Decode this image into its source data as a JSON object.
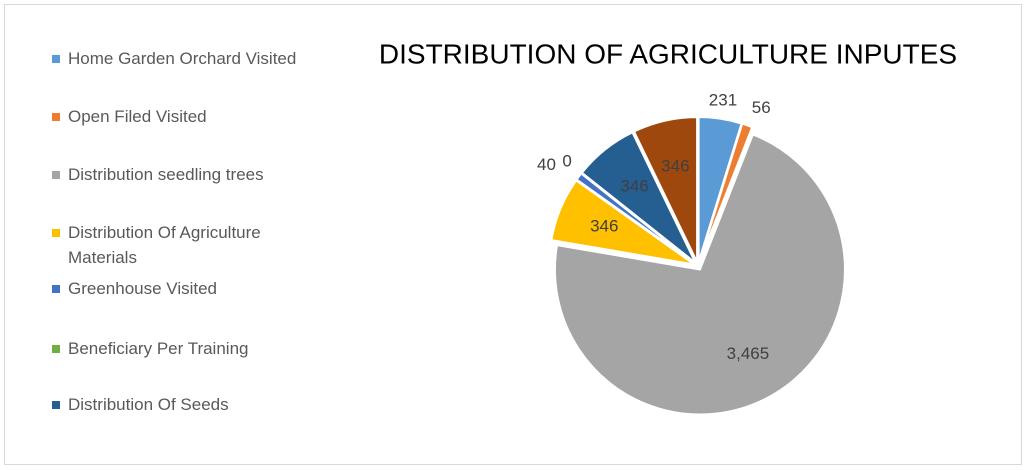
{
  "chart_data": {
    "type": "pie",
    "title": "DISTRIBUTION OF AGRICULTURE INPUTES",
    "categories": [
      "Home Garden Orchard Visited",
      "Open Filed Visited",
      "Distribution seedling trees",
      "Distribution Of Agriculture Materials",
      "Greenhouse Visited",
      "Beneficiary Per Training",
      "Distribution Of Seeds",
      null
    ],
    "values": [
      231,
      56,
      3465,
      346,
      40,
      0,
      346,
      346
    ],
    "value_labels": [
      "231",
      "56",
      "3,465",
      "346",
      "40",
      "0",
      "346",
      "346"
    ],
    "colors": [
      "#5b9bd5",
      "#ed7d31",
      "#a5a5a5",
      "#ffc000",
      "#4472c4",
      "#70ad47",
      "#255e91",
      "#9e480e"
    ]
  }
}
